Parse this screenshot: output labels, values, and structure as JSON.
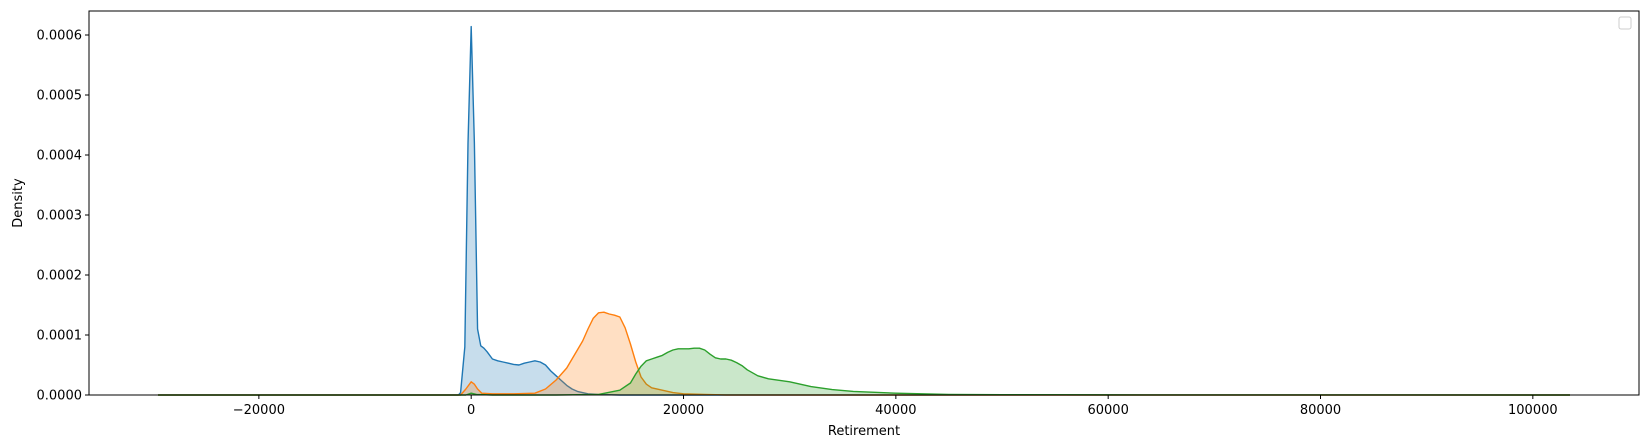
{
  "chart_data": {
    "type": "area",
    "title": "",
    "xlabel": "Retirement",
    "ylabel": "Density",
    "xlim": [
      -36000,
      110000
    ],
    "ylim": [
      0,
      0.00064
    ],
    "x_ticks": [
      {
        "value": -20000,
        "label": "−20000"
      },
      {
        "value": 0,
        "label": "0"
      },
      {
        "value": 20000,
        "label": "20000"
      },
      {
        "value": 40000,
        "label": "40000"
      },
      {
        "value": 60000,
        "label": "60000"
      },
      {
        "value": 80000,
        "label": "80000"
      },
      {
        "value": 100000,
        "label": "100000"
      }
    ],
    "y_ticks": [
      {
        "value": 0,
        "label": "0.0000"
      },
      {
        "value": 0.0001,
        "label": "0.0001"
      },
      {
        "value": 0.0002,
        "label": "0.0002"
      },
      {
        "value": 0.0003,
        "label": "0.0003"
      },
      {
        "value": 0.0004,
        "label": "0.0004"
      },
      {
        "value": 0.0005,
        "label": "0.0005"
      },
      {
        "value": 0.0006,
        "label": "0.0006"
      }
    ],
    "grid": false,
    "legend": {
      "placement": "top-right",
      "entries": []
    },
    "series": [
      {
        "color": "#1f77b4",
        "x": [
          -29500,
          -10000,
          -1200,
          -1000,
          -600,
          -300,
          0,
          300,
          600,
          900,
          1200,
          1500,
          2000,
          2500,
          3000,
          3500,
          4000,
          4500,
          5000,
          5500,
          6000,
          6500,
          7000,
          7500,
          8000,
          8500,
          9000,
          9500,
          10000,
          11000,
          12000,
          14000,
          20000,
          40000,
          103500
        ],
        "y": [
          0,
          0,
          0,
          4e-06,
          8e-05,
          0.00042,
          0.000614,
          0.00042,
          0.00011,
          8.2e-05,
          7.8e-05,
          7.2e-05,
          6e-05,
          5.7e-05,
          5.5e-05,
          5.3e-05,
          5.1e-05,
          5e-05,
          5.3e-05,
          5.5e-05,
          5.7e-05,
          5.5e-05,
          5e-05,
          4e-05,
          3.2e-05,
          2.4e-05,
          1.6e-05,
          1e-05,
          6e-06,
          2e-06,
          1e-06,
          0,
          0,
          0,
          0
        ]
      },
      {
        "color": "#ff7f0e",
        "x": [
          -29500,
          -1000,
          -500,
          0,
          300,
          600,
          1000,
          2000,
          4000,
          6000,
          7000,
          8000,
          9000,
          10000,
          10500,
          11000,
          11500,
          12000,
          12500,
          13000,
          13500,
          14000,
          14500,
          15000,
          15500,
          16000,
          16500,
          17000,
          18000,
          19000,
          20000,
          22000,
          24000,
          103500
        ],
        "y": [
          0,
          0,
          1e-05,
          2.2e-05,
          1.8e-05,
          1e-05,
          3e-06,
          2e-06,
          2e-06,
          3e-06,
          1e-05,
          2.5e-05,
          4.5e-05,
          7.5e-05,
          9e-05,
          0.00011,
          0.000128,
          0.000137,
          0.000138,
          0.000135,
          0.000133,
          0.00013,
          0.000112,
          8.5e-05,
          5.5e-05,
          3e-05,
          1.8e-05,
          1.2e-05,
          8e-06,
          4e-06,
          2e-06,
          1e-06,
          0,
          0
        ]
      },
      {
        "color": "#2ca02c",
        "x": [
          -29500,
          -500,
          0,
          500,
          2000,
          8000,
          12000,
          14000,
          15000,
          15500,
          16000,
          16500,
          17000,
          17500,
          18000,
          18500,
          19000,
          19500,
          20000,
          20500,
          21000,
          21500,
          22000,
          22500,
          23000,
          23500,
          24000,
          24500,
          25000,
          25500,
          26000,
          27000,
          28000,
          30000,
          32000,
          34000,
          36000,
          40000,
          45000,
          50000,
          60000,
          70000,
          103500
        ],
        "y": [
          0,
          0,
          3e-06,
          1e-06,
          0,
          0,
          1e-06,
          8e-06,
          2e-05,
          3.5e-05,
          4.8e-05,
          5.7e-05,
          6e-05,
          6.3e-05,
          6.6e-05,
          7.1e-05,
          7.5e-05,
          7.7e-05,
          7.7e-05,
          7.7e-05,
          7.8e-05,
          7.8e-05,
          7.5e-05,
          6.8e-05,
          6.2e-05,
          6e-05,
          6e-05,
          5.8e-05,
          5.4e-05,
          4.9e-05,
          4.2e-05,
          3.2e-05,
          2.7e-05,
          2.2e-05,
          1.4e-05,
          9e-06,
          6e-06,
          3e-06,
          1e-06,
          5e-07,
          2e-07,
          1e-07,
          0
        ]
      }
    ]
  }
}
